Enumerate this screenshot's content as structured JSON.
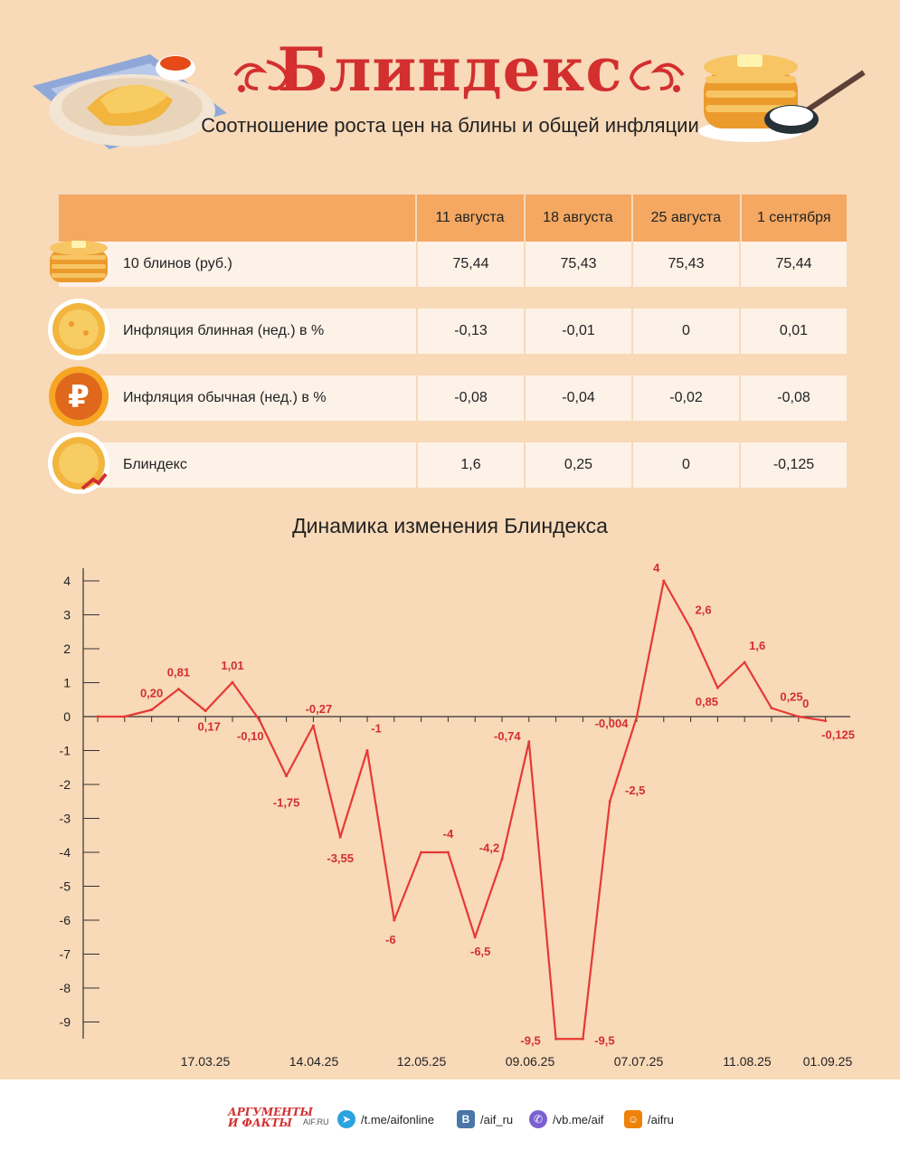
{
  "header": {
    "title": "Блиндекс",
    "subtitle": "Соотношение роста цен на блины и общей инфляции"
  },
  "table": {
    "columns": [
      "11 августа",
      "18 августа",
      "25 августа",
      "1 сентября"
    ],
    "rows": [
      {
        "icon": "pancake-stack-icon",
        "label": "10 блинов (руб.)",
        "values": [
          "75,44",
          "75,43",
          "75,43",
          "75,44"
        ]
      },
      {
        "icon": "pancake-icon",
        "label": "Инфляция блинная (нед.) в %",
        "values": [
          "-0,13",
          "-0,01",
          "0",
          "0,01"
        ]
      },
      {
        "icon": "ruble-coin-icon",
        "label": "Инфляция обычная (нед.) в %",
        "values": [
          "-0,08",
          "-0,04",
          "-0,02",
          "-0,08"
        ]
      },
      {
        "icon": "pancake-arrow-icon",
        "label": "Блиндекс",
        "values": [
          "1,6",
          "0,25",
          "0",
          "-0,125"
        ]
      }
    ]
  },
  "chart_data": {
    "type": "line",
    "title": "Динамика изменения Блиндекса",
    "xlabel": "",
    "ylabel": "",
    "ylim": [
      -9.5,
      4.2
    ],
    "yticks": [
      "4",
      "3",
      "2",
      "1",
      "0",
      "-1",
      "-2",
      "-3",
      "-4",
      "-5",
      "-6",
      "-7",
      "-8",
      "-9"
    ],
    "xtick_labels": [
      "17.03.25",
      "14.04.25",
      "12.05.25",
      "09.06.25",
      "07.07.25",
      "11.08.25",
      "01.09.25"
    ],
    "color": "#e53935",
    "series": [
      {
        "values": [
          0,
          0,
          0.2,
          0.81,
          0.17,
          1.01,
          -0.1,
          -1.75,
          -0.27,
          -3.55,
          -1,
          -6,
          -4,
          -4,
          -6.5,
          -4.2,
          -0.74,
          -9.5,
          -9.5,
          -2.5,
          -0.004,
          4,
          2.6,
          0.85,
          1.6,
          0.25,
          0,
          -0.125
        ],
        "labels": [
          "",
          "",
          "0,20",
          "0,81",
          "0,17",
          "1,01",
          "-0,10",
          "-1,75",
          "-0,27",
          "-3,55",
          "-1",
          "-6",
          "",
          "-4",
          "-6,5",
          "-4,2",
          "-0,74",
          "-9,5",
          "-9,5",
          "-2,5",
          "-0,004",
          "4",
          "2,6",
          "0,85",
          "1,6",
          "0,25",
          "0",
          "-0,125"
        ]
      }
    ]
  },
  "footer": {
    "logo_line1": "АРГУМЕНТЫ",
    "logo_line2": "И ФАКТЫ",
    "logo_site": "AIF.RU",
    "links": [
      {
        "icon": "telegram-icon",
        "text": "/t.me/aifonline",
        "color": "#2aa3e0"
      },
      {
        "icon": "vk-icon",
        "text": "/aif_ru",
        "color": "#4a76a8"
      },
      {
        "icon": "viber-icon",
        "text": "/vb.me/aif",
        "color": "#7d5fd3"
      },
      {
        "icon": "odnoklassniki-icon",
        "text": "/aifru",
        "color": "#ee8208"
      }
    ]
  }
}
